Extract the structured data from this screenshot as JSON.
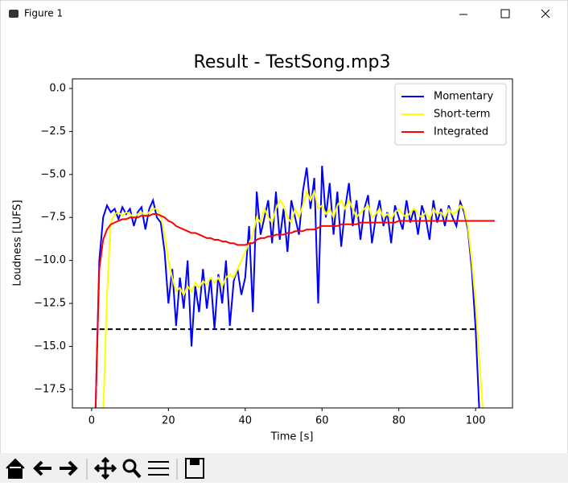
{
  "window_title": "Figure 1",
  "chart_data": {
    "type": "line",
    "title": "Result - TestSong.mp3",
    "x_label": "Time [s]",
    "y_label": "Loudness [LUFS]",
    "x": [
      0,
      1,
      2,
      3,
      4,
      5,
      6,
      7,
      8,
      9,
      10,
      11,
      12,
      13,
      14,
      15,
      16,
      17,
      18,
      19,
      20,
      21,
      22,
      23,
      24,
      25,
      26,
      27,
      28,
      29,
      30,
      31,
      32,
      33,
      34,
      35,
      36,
      37,
      38,
      39,
      40,
      41,
      42,
      43,
      44,
      45,
      46,
      47,
      48,
      49,
      50,
      51,
      52,
      53,
      54,
      55,
      56,
      57,
      58,
      59,
      60,
      61,
      62,
      63,
      64,
      65,
      66,
      67,
      68,
      69,
      70,
      71,
      72,
      73,
      74,
      75,
      76,
      77,
      78,
      79,
      80,
      81,
      82,
      83,
      84,
      85,
      86,
      87,
      88,
      89,
      90,
      91,
      92,
      93,
      94,
      95,
      96,
      97,
      98,
      99,
      100,
      101,
      102,
      103,
      104,
      105
    ],
    "series": [
      {
        "name": "Momentary",
        "color": "#0000ff",
        "values": [
          null,
          -19,
          -10,
          -7.5,
          -6.8,
          -7.2,
          -7.0,
          -7.6,
          -6.9,
          -7.3,
          -7.0,
          -8.0,
          -7.2,
          -6.9,
          -8.2,
          -7.0,
          -6.5,
          -7.5,
          -7.8,
          -9.5,
          -12.5,
          -10.5,
          -13.8,
          -11.0,
          -12.8,
          -10.0,
          -15.0,
          -11.5,
          -13.0,
          -10.5,
          -12.8,
          -11.0,
          -14.0,
          -10.8,
          -12.5,
          -10.0,
          -13.8,
          -11.2,
          -10.5,
          -12.0,
          -11.0,
          -8.0,
          -13.0,
          -6.0,
          -8.5,
          -7.5,
          -6.5,
          -9.0,
          -6.0,
          -8.8,
          -7.0,
          -9.5,
          -6.5,
          -7.5,
          -8.5,
          -6.0,
          -4.6,
          -7.0,
          -5.2,
          -12.5,
          -4.5,
          -7.5,
          -5.5,
          -8.5,
          -6.0,
          -9.2,
          -7.0,
          -5.5,
          -8.0,
          -6.5,
          -8.8,
          -7.0,
          -6.2,
          -9.0,
          -7.5,
          -6.5,
          -8.0,
          -7.2,
          -9.0,
          -6.8,
          -7.5,
          -8.2,
          -6.5,
          -7.8,
          -7.0,
          -8.5,
          -6.8,
          -7.5,
          -8.8,
          -6.5,
          -7.8,
          -7.0,
          -8.0,
          -6.8,
          -7.5,
          -8.0,
          -6.6,
          -7.2,
          -8.2,
          -10.5,
          -14,
          -19,
          null,
          null,
          null,
          null
        ]
      },
      {
        "name": "Short-term",
        "color": "#ffff00",
        "values": [
          null,
          null,
          null,
          -19,
          -12,
          -7.8,
          -7.3,
          -7.2,
          -7.4,
          -7.2,
          -7.3,
          -7.5,
          -7.3,
          -7.2,
          -7.4,
          -7.2,
          -7.0,
          -7.0,
          -7.4,
          -8.5,
          -10.0,
          -11.0,
          -11.8,
          -11.6,
          -12.0,
          -11.5,
          -11.8,
          -11.3,
          -11.6,
          -11.2,
          -11.4,
          -11.0,
          -11.3,
          -11.0,
          -11.5,
          -11.0,
          -10.8,
          -11.0,
          -10.5,
          -10.0,
          -9.5,
          -9.0,
          -8.5,
          -7.5,
          -7.8,
          -7.0,
          -7.5,
          -7.8,
          -7.0,
          -6.5,
          -6.8,
          -7.5,
          -7.8,
          -7.0,
          -7.5,
          -6.8,
          -6.0,
          -6.5,
          -6.0,
          -7.0,
          -6.8,
          -7.3,
          -7.0,
          -7.5,
          -6.8,
          -6.5,
          -7.0,
          -6.5,
          -7.0,
          -7.5,
          -7.2,
          -7.0,
          -6.8,
          -7.5,
          -7.3,
          -7.0,
          -7.5,
          -7.3,
          -7.6,
          -7.2,
          -7.0,
          -7.3,
          -7.5,
          -7.2,
          -7.0,
          -7.3,
          -7.5,
          -7.2,
          -7.6,
          -7.0,
          -7.3,
          -7.2,
          -7.5,
          -7.0,
          -7.3,
          -7.2,
          -6.8,
          -7.0,
          -8.0,
          -10,
          -12.5,
          -16,
          -19,
          null,
          null,
          null
        ]
      },
      {
        "name": "Integrated",
        "color": "#ff0000",
        "values": [
          null,
          -19,
          -10.5,
          -8.8,
          -8.2,
          -7.9,
          -7.8,
          -7.7,
          -7.6,
          -7.6,
          -7.5,
          -7.5,
          -7.5,
          -7.4,
          -7.4,
          -7.4,
          -7.3,
          -7.3,
          -7.4,
          -7.5,
          -7.7,
          -7.8,
          -8.0,
          -8.1,
          -8.2,
          -8.3,
          -8.4,
          -8.4,
          -8.5,
          -8.6,
          -8.7,
          -8.7,
          -8.8,
          -8.8,
          -8.9,
          -8.9,
          -9.0,
          -9.0,
          -9.1,
          -9.1,
          -9.1,
          -9.0,
          -9.0,
          -8.8,
          -8.7,
          -8.7,
          -8.6,
          -8.6,
          -8.5,
          -8.5,
          -8.5,
          -8.4,
          -8.4,
          -8.3,
          -8.3,
          -8.3,
          -8.2,
          -8.2,
          -8.2,
          -8.1,
          -8.0,
          -8.0,
          -8.0,
          -8.0,
          -8.0,
          -7.9,
          -7.9,
          -7.9,
          -7.9,
          -7.9,
          -7.8,
          -7.8,
          -7.8,
          -7.8,
          -7.8,
          -7.8,
          -7.8,
          -7.8,
          -7.8,
          -7.8,
          -7.7,
          -7.7,
          -7.7,
          -7.7,
          -7.7,
          -7.7,
          -7.7,
          -7.7,
          -7.7,
          -7.7,
          -7.7,
          -7.7,
          -7.7,
          -7.7,
          -7.7,
          -7.7,
          -7.7,
          -7.7,
          -7.7,
          -7.7,
          -7.7,
          -7.7,
          -7.7,
          -7.7,
          -7.7,
          -7.7
        ]
      }
    ],
    "threshold": {
      "y": -14,
      "x": [
        0,
        100
      ],
      "color": "#000000"
    },
    "xlim": [
      -5,
      109.6
    ],
    "ylim": [
      -18.58,
      0.56
    ],
    "xticks": [
      0,
      20,
      40,
      60,
      80,
      100
    ],
    "yticks": [
      {
        "value": 0,
        "label": "0.0"
      },
      {
        "value": -2.5,
        "label": "−2.5"
      },
      {
        "value": -5,
        "label": "−5.0"
      },
      {
        "value": -7.5,
        "label": "−7.5"
      },
      {
        "value": -10,
        "label": "−10.0"
      },
      {
        "value": -12.5,
        "label": "−12.5"
      },
      {
        "value": -15,
        "label": "−15.0"
      },
      {
        "value": -17.5,
        "label": "−17.5"
      }
    ],
    "legend": "upper right",
    "grid": false
  }
}
